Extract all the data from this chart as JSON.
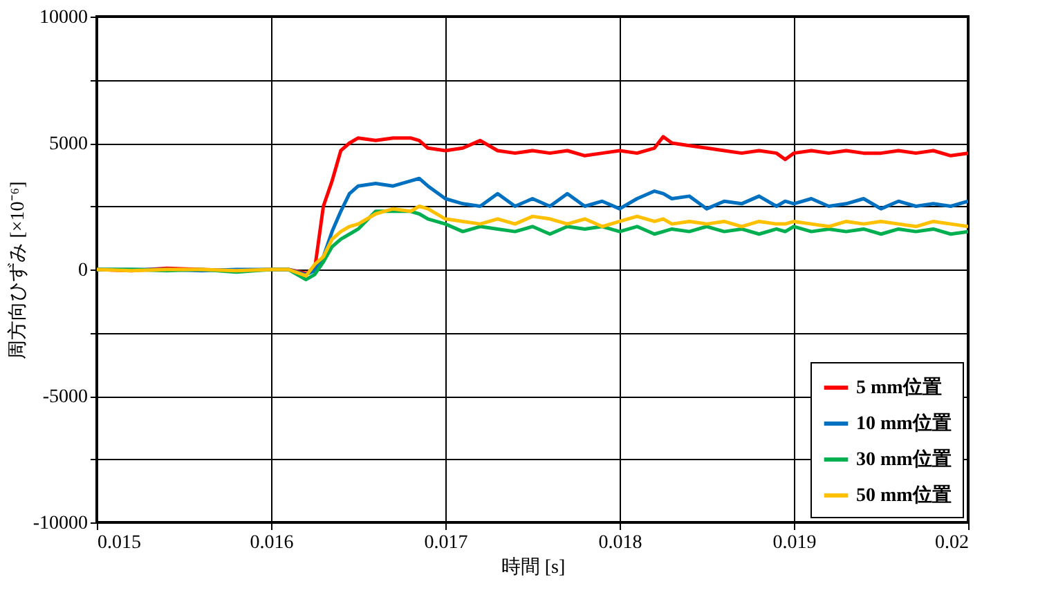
{
  "chart_data": {
    "type": "line",
    "xlabel": "時間 [s]",
    "ylabel": "周方向ひずみ [×10⁻⁶]",
    "x": [
      0.015,
      0.0152,
      0.0154,
      0.0156,
      0.0158,
      0.016,
      0.0161,
      0.0162,
      0.01625,
      0.0163,
      0.01635,
      0.0164,
      0.01645,
      0.0165,
      0.0166,
      0.0167,
      0.0168,
      0.01685,
      0.0169,
      0.017,
      0.0171,
      0.0172,
      0.0173,
      0.0174,
      0.0175,
      0.0176,
      0.0177,
      0.0178,
      0.0179,
      0.018,
      0.0181,
      0.0182,
      0.01825,
      0.0183,
      0.0184,
      0.0185,
      0.0186,
      0.0187,
      0.0188,
      0.0189,
      0.01895,
      0.019,
      0.0191,
      0.0192,
      0.0193,
      0.0194,
      0.0195,
      0.0196,
      0.0197,
      0.0198,
      0.0199,
      0.02
    ],
    "series": [
      {
        "name": "5 mm位置",
        "color": "#ff0000",
        "values": [
          0,
          -50,
          50,
          0,
          -50,
          0,
          0,
          -150,
          0,
          2500,
          3500,
          4700,
          5000,
          5200,
          5100,
          5200,
          5200,
          5100,
          4800,
          4700,
          4800,
          5100,
          4700,
          4600,
          4700,
          4600,
          4700,
          4500,
          4600,
          4700,
          4600,
          4800,
          5250,
          5000,
          4900,
          4800,
          4700,
          4600,
          4700,
          4600,
          4350,
          4600,
          4700,
          4600,
          4700,
          4600,
          4600,
          4700,
          4600,
          4700,
          4500,
          4600
        ]
      },
      {
        "name": "10 mm位置",
        "color": "#0070c0",
        "values": [
          0,
          0,
          0,
          -50,
          0,
          0,
          0,
          -200,
          -50,
          500,
          1500,
          2300,
          3000,
          3300,
          3400,
          3300,
          3500,
          3600,
          3300,
          2800,
          2600,
          2500,
          3000,
          2500,
          2800,
          2500,
          3000,
          2500,
          2700,
          2400,
          2800,
          3100,
          3000,
          2800,
          2900,
          2400,
          2700,
          2600,
          2900,
          2500,
          2700,
          2600,
          2800,
          2500,
          2600,
          2800,
          2400,
          2700,
          2500,
          2600,
          2500,
          2700
        ]
      },
      {
        "name": "30 mm位置",
        "color": "#00b050",
        "values": [
          0,
          0,
          -50,
          0,
          -100,
          0,
          0,
          -400,
          -200,
          300,
          900,
          1200,
          1400,
          1600,
          2300,
          2300,
          2300,
          2200,
          2000,
          1800,
          1500,
          1700,
          1600,
          1500,
          1700,
          1400,
          1700,
          1600,
          1700,
          1500,
          1700,
          1400,
          1500,
          1600,
          1500,
          1700,
          1500,
          1600,
          1400,
          1600,
          1500,
          1700,
          1500,
          1600,
          1500,
          1600,
          1400,
          1600,
          1500,
          1600,
          1400,
          1500
        ]
      },
      {
        "name": "50 mm位置",
        "color": "#ffc000",
        "values": [
          0,
          -50,
          0,
          0,
          -50,
          0,
          0,
          -250,
          200,
          500,
          1200,
          1500,
          1700,
          1800,
          2200,
          2400,
          2300,
          2500,
          2400,
          2000,
          1900,
          1800,
          2000,
          1800,
          2100,
          2000,
          1800,
          2000,
          1700,
          1900,
          2100,
          1900,
          2000,
          1800,
          1900,
          1800,
          1900,
          1700,
          1900,
          1800,
          1800,
          1900,
          1800,
          1700,
          1900,
          1800,
          1900,
          1800,
          1700,
          1900,
          1800,
          1700
        ]
      }
    ],
    "xlim": [
      0.015,
      0.02
    ],
    "xticks": [
      0.015,
      0.016,
      0.017,
      0.018,
      0.019,
      0.02
    ],
    "ylim": [
      -10000,
      10000
    ],
    "yticks": [
      -10000,
      {
        "value": -7500,
        "label": null
      },
      -5000,
      {
        "value": -2500,
        "label": null
      },
      0,
      {
        "value": 2500,
        "label": null
      },
      5000,
      {
        "value": 7500,
        "label": null
      },
      10000
    ],
    "grid": true,
    "legend": "bottom right",
    "marker": "none",
    "line_style": "solid"
  }
}
